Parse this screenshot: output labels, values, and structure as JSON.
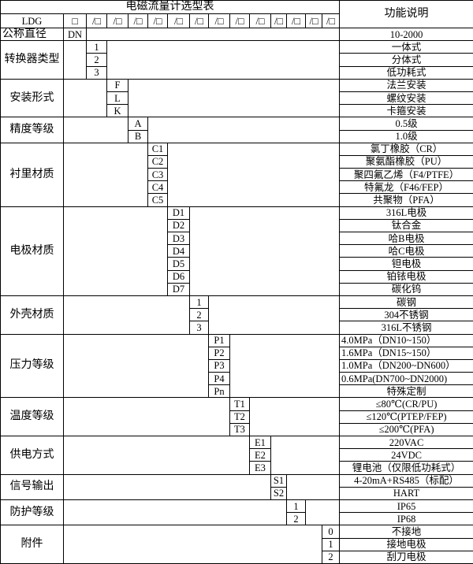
{
  "title": "电磁流量计选型表",
  "function_header": "功能说明",
  "model_prefix": "LDG",
  "header_cells": [
    "□",
    "/□",
    "/□",
    "/□",
    "/□",
    "/□",
    "/□",
    "/□",
    "/□",
    "/□",
    "/□",
    "/□",
    "/□",
    "/□"
  ],
  "groups": [
    {
      "label": "公称直径",
      "col": 0,
      "label_align": "left",
      "codes": [
        "DN"
      ],
      "descriptions": [
        "10-2000"
      ]
    },
    {
      "label": "转换器类型",
      "col": 1,
      "codes": [
        "1",
        "2",
        "3"
      ],
      "descriptions": [
        "一体式",
        "分体式",
        "低功耗式"
      ]
    },
    {
      "label": "安装形式",
      "col": 2,
      "codes": [
        "F",
        "L",
        "K"
      ],
      "descriptions": [
        "法兰安装",
        "螺纹安装",
        "卡箍安装"
      ]
    },
    {
      "label": "精度等级",
      "col": 3,
      "codes": [
        "A",
        "B"
      ],
      "descriptions": [
        "0.5级",
        "1.0级"
      ]
    },
    {
      "label": "衬里材质",
      "col": 4,
      "codes": [
        "C1",
        "C2",
        "C3",
        "C4",
        "C5"
      ],
      "descriptions": [
        "氯丁橡胶（CR）",
        "聚氨酯橡胶（PU）",
        "聚四氟乙烯（F4/PTFE）",
        "特氟龙（F46/FEP）",
        "共聚物（PFA）"
      ]
    },
    {
      "label": "电极材质",
      "col": 5,
      "codes": [
        "D1",
        "D2",
        "D3",
        "D4",
        "D5",
        "D6",
        "D7"
      ],
      "descriptions": [
        "316L电极",
        "钛合金",
        "哈B电极",
        "哈C电极",
        "钽电极",
        "铂铱电极",
        "碳化钨"
      ]
    },
    {
      "label": "外壳材质",
      "col": 6,
      "codes": [
        "1",
        "2",
        "3"
      ],
      "descriptions": [
        "碳钢",
        "304不锈钢",
        "316L不锈钢"
      ]
    },
    {
      "label": "压力等级",
      "col": 7,
      "codes": [
        "P1",
        "P2",
        "P3",
        "P4",
        "Pn"
      ],
      "descriptions": [
        "4.0MPa（DN10~150）",
        "1.6MPa（DN15~150）",
        "1.0MPa（DN200~DN600）",
        "0.6MPa(DN700~DN2000)",
        "特殊定制"
      ],
      "desc_align": [
        "left",
        "left",
        "left",
        "left",
        "center"
      ]
    },
    {
      "label": "温度等级",
      "col": 8,
      "codes": [
        "T1",
        "T2",
        "T3"
      ],
      "descriptions": [
        "≤80℃(CR/PU)",
        "≤120℃(PTEP/FEP)",
        "≤200℃(PFA)"
      ]
    },
    {
      "label": "供电方式",
      "col": 9,
      "codes": [
        "E1",
        "E2",
        "E3"
      ],
      "descriptions": [
        "220VAC",
        "24VDC",
        "锂电池（仅限低功耗式）"
      ]
    },
    {
      "label": "信号输出",
      "col": 10,
      "codes": [
        "S1",
        "S2"
      ],
      "descriptions": [
        "4-20mA+RS485（标配）",
        "HART"
      ]
    },
    {
      "label": "防护等级",
      "col": 11,
      "codes": [
        "1",
        "2"
      ],
      "descriptions": [
        "IP65",
        "IP68"
      ]
    },
    {
      "label": "附件",
      "col": 13,
      "codes": [
        "0",
        "1",
        "2"
      ],
      "descriptions": [
        "不接地",
        "接地电极",
        "刮刀电极"
      ]
    }
  ]
}
